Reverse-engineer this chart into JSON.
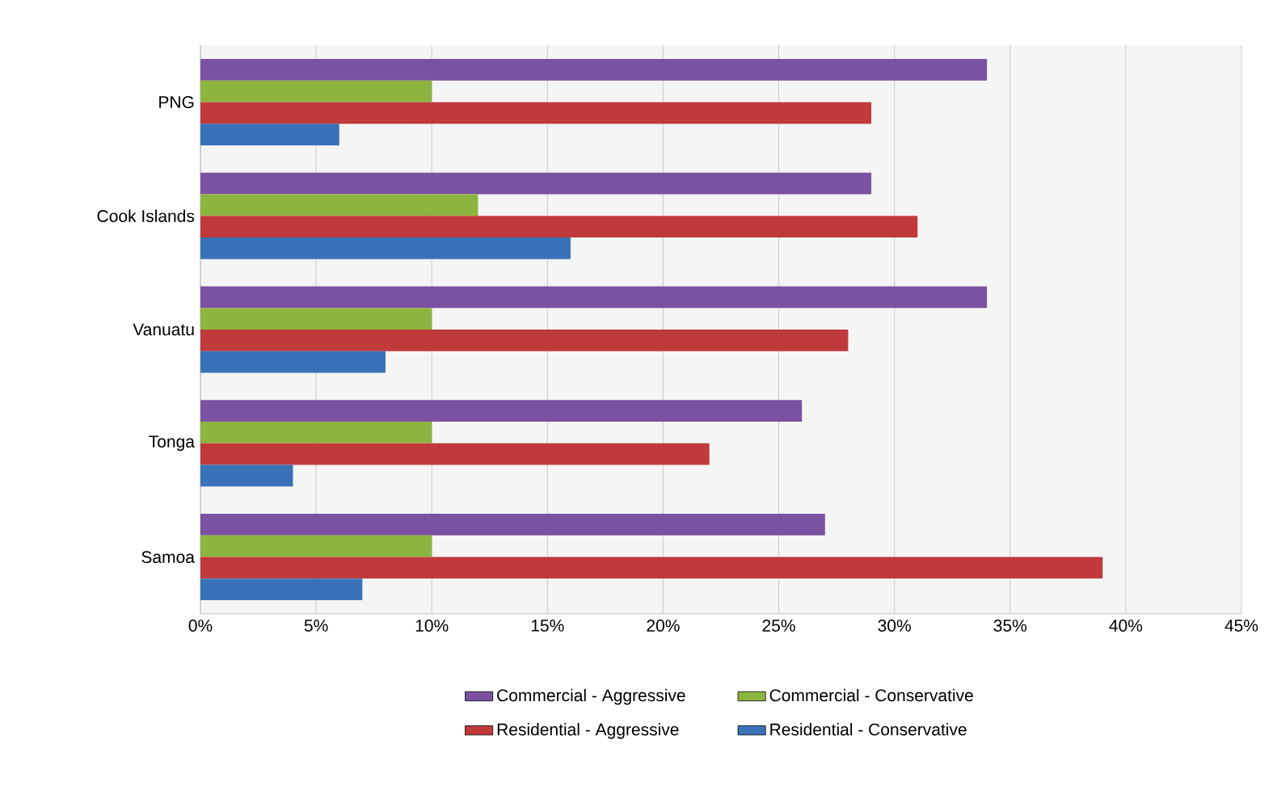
{
  "chart_data": {
    "type": "bar",
    "orientation": "horizontal",
    "categories": [
      "PNG",
      "Cook Islands",
      "Vanuatu",
      "Tonga",
      "Samoa"
    ],
    "series": [
      {
        "name": "Commercial - Aggressive",
        "color": "#7b52a1",
        "values": [
          34,
          29,
          34,
          26,
          27
        ]
      },
      {
        "name": "Commercial - Conservative",
        "color": "#8db43f",
        "values": [
          10,
          12,
          10,
          10,
          10
        ]
      },
      {
        "name": "Residential - Aggressive",
        "color": "#c0393b",
        "values": [
          29,
          31,
          28,
          22,
          39
        ]
      },
      {
        "name": "Residential - Conservative",
        "color": "#3a72b8",
        "values": [
          6,
          16,
          8,
          4,
          7
        ]
      }
    ],
    "xlim": [
      0,
      45
    ],
    "xticks": [
      {
        "value": 0,
        "label": "0%"
      },
      {
        "value": 5,
        "label": "5%"
      },
      {
        "value": 10,
        "label": "10%"
      },
      {
        "value": 15,
        "label": "15%"
      },
      {
        "value": 20,
        "label": "20%"
      },
      {
        "value": 25,
        "label": "25%"
      },
      {
        "value": 30,
        "label": "30%"
      },
      {
        "value": 35,
        "label": "35%"
      },
      {
        "value": 40,
        "label": "40%"
      },
      {
        "value": 45,
        "label": "45%"
      }
    ],
    "grid": "x",
    "legend": "bottom"
  }
}
